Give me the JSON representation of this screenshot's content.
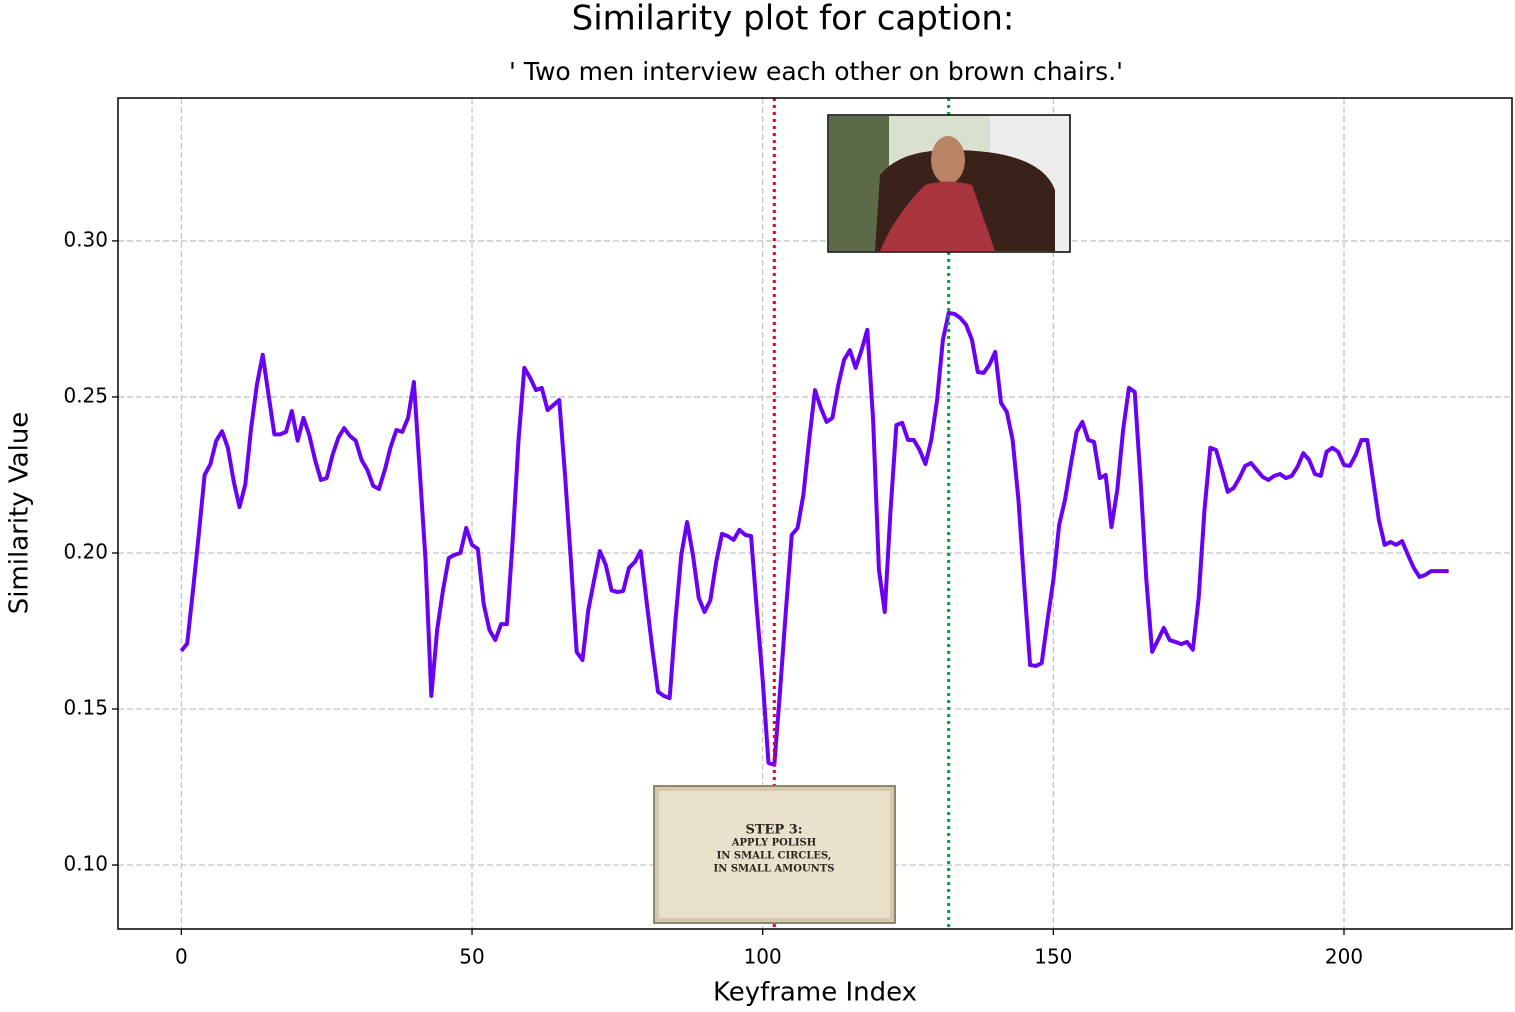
{
  "chart_data": {
    "type": "line",
    "title": "Similarity plot for caption:",
    "subtitle": "'  Two men interview each other on brown chairs.'",
    "x_label": "Keyframe Index",
    "y_label": "Similarity Value",
    "xlim": [
      -10.9,
      228.9
    ],
    "ylim": [
      0.0795,
      0.3458
    ],
    "xticks": [
      0,
      50,
      100,
      150,
      200
    ],
    "yticks": [
      {
        "value": 0.1,
        "label": "0.10"
      },
      {
        "value": 0.15,
        "label": "0.15"
      },
      {
        "value": 0.2,
        "label": "0.20"
      },
      {
        "value": 0.25,
        "label": "0.25"
      },
      {
        "value": 0.3,
        "label": "0.30"
      }
    ],
    "grid": true,
    "vlines": [
      {
        "x": 102,
        "color": "#e8001c"
      },
      {
        "x": 132,
        "color": "#00a030"
      }
    ],
    "image_text": [
      "STEP 3:",
      "APPLY POLISH",
      "IN SMALL CIRCLES,",
      "IN SMALL AMOUNTS"
    ],
    "series": [
      {
        "color": "#6a00f4",
        "x": [
          0,
          1,
          2,
          3,
          4,
          5,
          6,
          7,
          8,
          9,
          10,
          11,
          12,
          13,
          14,
          15,
          16,
          17,
          18,
          19,
          20,
          21,
          22,
          23,
          24,
          25,
          26,
          27,
          28,
          29,
          30,
          31,
          32,
          33,
          34,
          35,
          36,
          37,
          38,
          39,
          40,
          41,
          42,
          43,
          44,
          45,
          46,
          47,
          48,
          49,
          50,
          51,
          52,
          53,
          54,
          55,
          56,
          57,
          58,
          59,
          60,
          61,
          62,
          63,
          64,
          65,
          66,
          67,
          68,
          69,
          70,
          71,
          72,
          73,
          74,
          75,
          76,
          77,
          78,
          79,
          80,
          81,
          82,
          83,
          84,
          85,
          86,
          87,
          88,
          89,
          90,
          91,
          92,
          93,
          94,
          95,
          96,
          97,
          98,
          99,
          100,
          101,
          102,
          103,
          104,
          105,
          106,
          107,
          108,
          109,
          110,
          111,
          112,
          113,
          114,
          115,
          116,
          117,
          118,
          119,
          120,
          121,
          122,
          123,
          124,
          125,
          126,
          127,
          128,
          129,
          130,
          131,
          132,
          133,
          134,
          135,
          136,
          137,
          138,
          139,
          140,
          141,
          142,
          143,
          144,
          145,
          146,
          147,
          148,
          149,
          150,
          151,
          152,
          153,
          154,
          155,
          156,
          157,
          158,
          159,
          160,
          161,
          162,
          163,
          164,
          165,
          166,
          167,
          168,
          169,
          170,
          171,
          172,
          173,
          174,
          175,
          176,
          177,
          178,
          179,
          180,
          181,
          182,
          183,
          184,
          185,
          186,
          187,
          188,
          189,
          190,
          191,
          192,
          193,
          194,
          195,
          196,
          197,
          198,
          199,
          200,
          201,
          202,
          203,
          204,
          205,
          206,
          207,
          208,
          209,
          210,
          211,
          212,
          213,
          214,
          215,
          216,
          217,
          218
        ],
        "values": [
          0.1686,
          0.171,
          0.188,
          0.206,
          0.225,
          0.2285,
          0.236,
          0.239,
          0.2337,
          0.223,
          0.2147,
          0.222,
          0.24,
          0.254,
          0.2635,
          0.2506,
          0.238,
          0.238,
          0.2388,
          0.2455,
          0.236,
          0.2433,
          0.2378,
          0.2298,
          0.2234,
          0.224,
          0.2314,
          0.2369,
          0.24,
          0.2375,
          0.236,
          0.2298,
          0.2266,
          0.2215,
          0.2205,
          0.2266,
          0.234,
          0.2394,
          0.2388,
          0.2433,
          0.2548,
          0.2266,
          0.1978,
          0.1542,
          0.1753,
          0.188,
          0.1984,
          0.1994,
          0.2,
          0.208,
          0.2026,
          0.2013,
          0.1837,
          0.1753,
          0.1721,
          0.1772,
          0.1772,
          0.2042,
          0.2362,
          0.2593,
          0.2561,
          0.2522,
          0.2529,
          0.2458,
          0.2474,
          0.249,
          0.225,
          0.1978,
          0.1683,
          0.1657,
          0.1817,
          0.1913,
          0.2006,
          0.1962,
          0.188,
          0.1875,
          0.1878,
          0.1952,
          0.1971,
          0.2006,
          0.1849,
          0.1696,
          0.1555,
          0.1542,
          0.1535,
          0.1785,
          0.1994,
          0.2099,
          0.1994,
          0.1856,
          0.1811,
          0.1849,
          0.1971,
          0.2061,
          0.2054,
          0.2042,
          0.2074,
          0.2058,
          0.2054,
          0.1817,
          0.1593,
          0.1327,
          0.1321,
          0.1561,
          0.1817,
          0.2058,
          0.208,
          0.2186,
          0.2362,
          0.2522,
          0.2465,
          0.242,
          0.2433,
          0.2538,
          0.2619,
          0.265,
          0.2593,
          0.265,
          0.2715,
          0.2426,
          0.1946,
          0.1811,
          0.2138,
          0.241,
          0.2417,
          0.2362,
          0.2362,
          0.233,
          0.2285,
          0.2362,
          0.249,
          0.2683,
          0.2769,
          0.2766,
          0.2753,
          0.2731,
          0.2683,
          0.258,
          0.2577,
          0.2603,
          0.2644,
          0.2481,
          0.2452,
          0.2362,
          0.217,
          0.1897,
          0.1641,
          0.1638,
          0.1647,
          0.1785,
          0.1913,
          0.209,
          0.217,
          0.2282,
          0.2388,
          0.242,
          0.2362,
          0.2356,
          0.224,
          0.225,
          0.2083,
          0.2202,
          0.2394,
          0.2529,
          0.2516,
          0.2234,
          0.1913,
          0.1683,
          0.1721,
          0.176,
          0.1721,
          0.1715,
          0.1708,
          0.1715,
          0.169,
          0.1856,
          0.2138,
          0.2337,
          0.233,
          0.2266,
          0.2196,
          0.2208,
          0.224,
          0.2279,
          0.2288,
          0.2266,
          0.2244,
          0.2234,
          0.2247,
          0.2253,
          0.224,
          0.2247,
          0.2276,
          0.232,
          0.2298,
          0.2253,
          0.2247,
          0.2324,
          0.2337,
          0.2324,
          0.2282,
          0.2279,
          0.2314,
          0.2362,
          0.2362,
          0.2234,
          0.2106,
          0.2026,
          0.2035,
          0.2026,
          0.2038,
          0.1994,
          0.1952,
          0.1923,
          0.193,
          0.1942,
          0.1942,
          0.1942,
          0.1942
        ]
      }
    ]
  }
}
